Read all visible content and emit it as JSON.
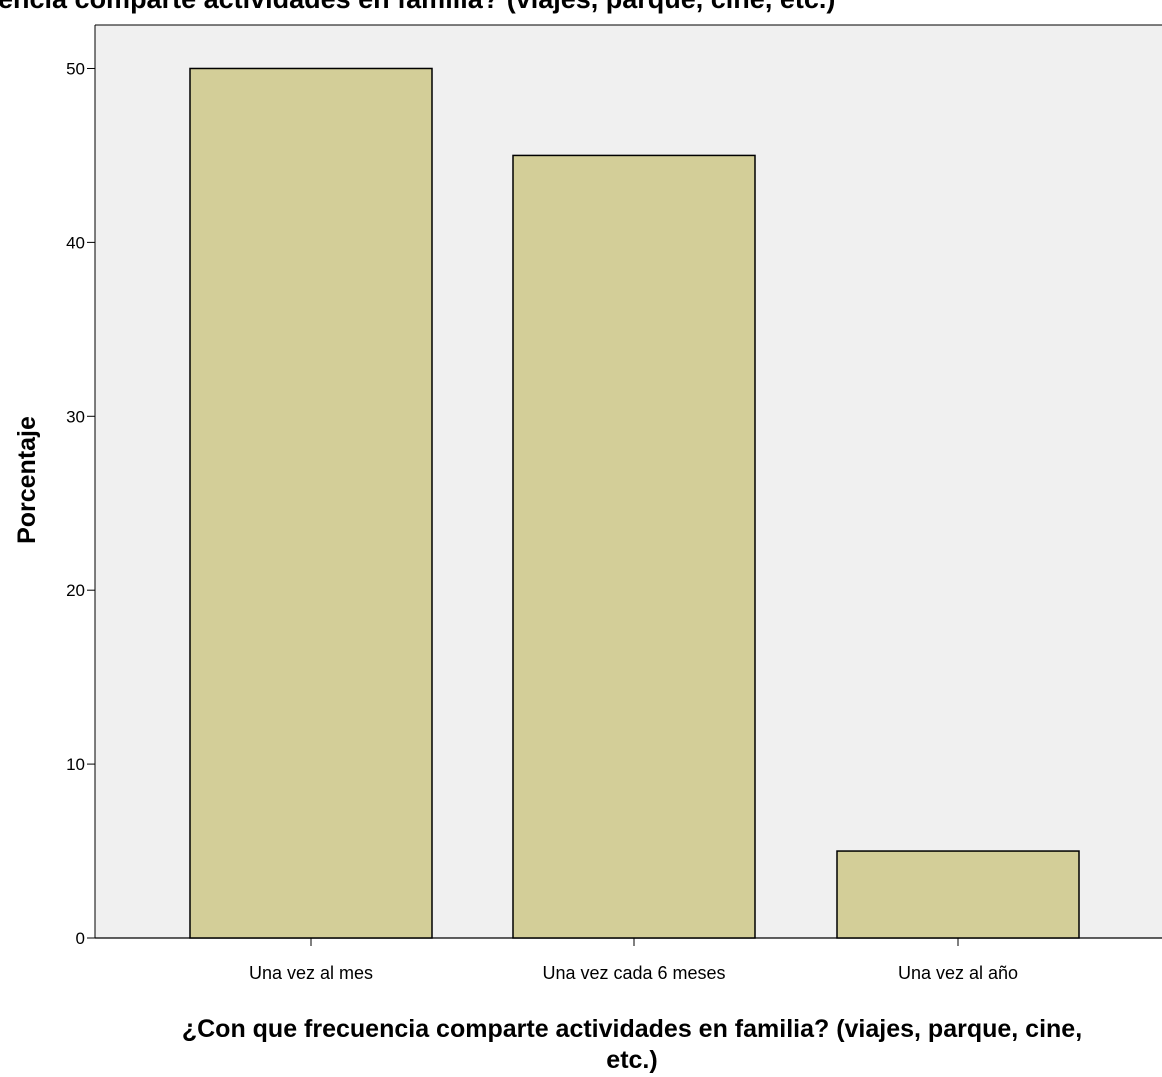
{
  "colors": {
    "plot_background": "#f0f0f0",
    "bar_fill": "#d3ce98",
    "bar_stroke": "#000000"
  },
  "chart_data": {
    "type": "bar",
    "title": "¿Con que frecuencia comparte actividades en familia? (viajes, parque, cine, etc.)",
    "categories": [
      "Una vez al mes",
      "Una vez cada 6 meses",
      "Una vez al año"
    ],
    "values": [
      50,
      45,
      5
    ],
    "xlabel_lines": [
      "¿Con que frecuencia comparte actividades en familia? (viajes, parque, cine,",
      "etc.)"
    ],
    "ylabel": "Porcentaje",
    "ylim": [
      0,
      52.5
    ],
    "yticks": [
      0,
      10,
      20,
      30,
      40,
      50
    ],
    "grid": false,
    "legend": "none"
  }
}
